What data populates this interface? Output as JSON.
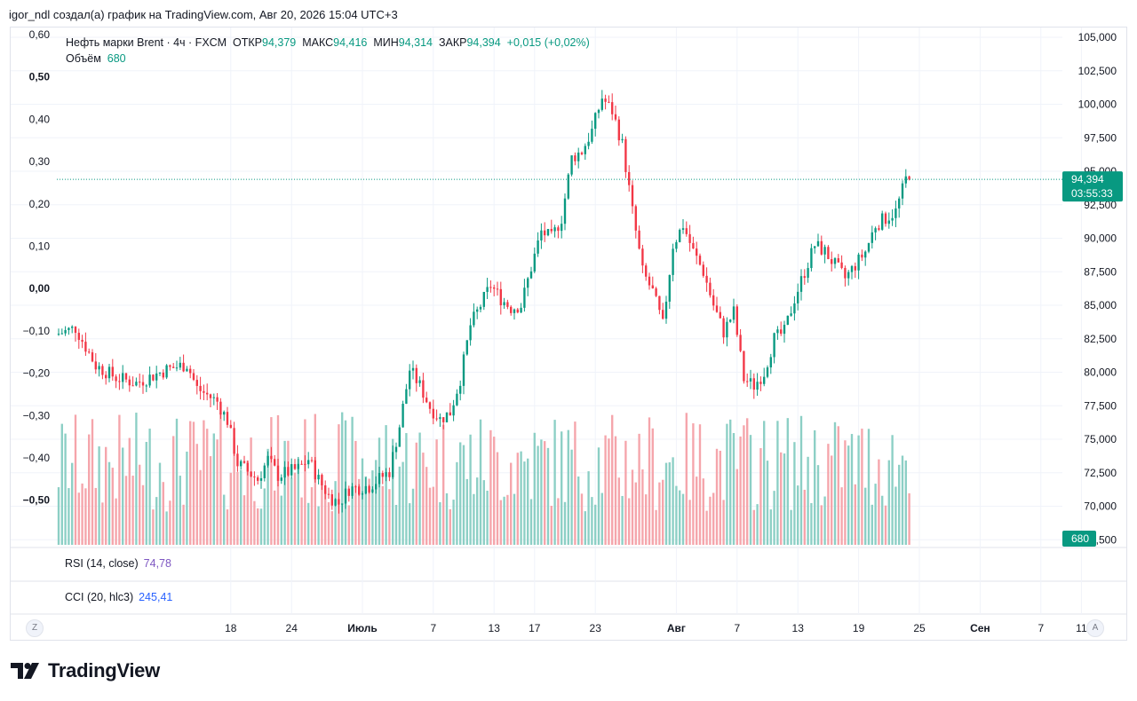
{
  "header": {
    "credit": "igor_ndl создал(а) график на TradingView.com, Авг 20, 2026 15:04 UTC+3"
  },
  "legend": {
    "symbol": "Нефть марки Brent · 4ч · FXCM",
    "open_label": "ОТКР",
    "open": "94,379",
    "high_label": "МАКС",
    "high": "94,416",
    "low_label": "МИН",
    "low": "94,314",
    "close_label": "ЗАКР",
    "close": "94,394",
    "change": "+0,015 (+0,02%)",
    "volume_label": "Объём",
    "volume": "680"
  },
  "indicators": {
    "rsi_label": "RSI (14, close)",
    "rsi_value": "74,78",
    "cci_label": "CCI (20, hlc3)",
    "cci_value": "245,41"
  },
  "price_badge": {
    "price": "94,394",
    "countdown": "03:55:33"
  },
  "volume_badge": "680",
  "buttons": {
    "left": "Z",
    "right": "A"
  },
  "logo": {
    "text": "TradingView",
    "icon": "tradingview-logo-icon"
  },
  "colors": {
    "up": "#089981",
    "down": "#f23645",
    "up_volume": "#8ccfc5",
    "down_volume": "#f5a5ab",
    "price_line": "#089981"
  },
  "chart_data": {
    "type": "candlestick",
    "left_axis": {
      "ticks": [
        "0,60",
        "0,50",
        "0,40",
        "0,30",
        "0,20",
        "0,10",
        "0,00",
        "−0,10",
        "−0,20",
        "−0,30",
        "−0,40",
        "−0,50"
      ],
      "values": [
        0.6,
        0.5,
        0.4,
        0.3,
        0.2,
        0.1,
        0.0,
        -0.1,
        -0.2,
        -0.3,
        -0.4,
        -0.5
      ]
    },
    "right_axis": {
      "ticks": [
        "105,000",
        "102,500",
        "100,000",
        "97,500",
        "95,000",
        "92,500",
        "90,000",
        "87,500",
        "85,000",
        "82,500",
        "80,000",
        "77,500",
        "75,000",
        "72,500",
        "70,000",
        "67,500"
      ],
      "values": [
        105,
        102.5,
        100,
        97.5,
        95,
        92.5,
        90,
        87.5,
        85,
        82.5,
        80,
        77.5,
        75,
        72.5,
        70,
        67.5
      ]
    },
    "x_axis": {
      "labels": [
        "18",
        "24",
        "Июль",
        "7",
        "13",
        "17",
        "23",
        "Авг",
        "7",
        "13",
        "19",
        "25",
        "Сен",
        "7",
        "11"
      ],
      "positions": [
        17,
        23,
        30,
        37,
        43,
        47,
        53,
        61,
        67,
        73,
        79,
        85,
        91,
        97,
        101
      ]
    },
    "current_price": 94.394,
    "anchors": [
      [
        0,
        82.8
      ],
      [
        2,
        83.3
      ],
      [
        4,
        80.5
      ],
      [
        6,
        79.6
      ],
      [
        8,
        79.2
      ],
      [
        11,
        80.2
      ],
      [
        13,
        80.6
      ],
      [
        14,
        78.8
      ],
      [
        16,
        77.8
      ],
      [
        17,
        76.4
      ],
      [
        18,
        73.2
      ],
      [
        20,
        72.0
      ],
      [
        21,
        73.5
      ],
      [
        22,
        72.3
      ],
      [
        24,
        72.8
      ],
      [
        25,
        73.5
      ],
      [
        26,
        72.0
      ],
      [
        27,
        70.8
      ],
      [
        28,
        70.2
      ],
      [
        29,
        71.3
      ],
      [
        31,
        71.5
      ],
      [
        33,
        72.6
      ],
      [
        34,
        76.0
      ],
      [
        35,
        80.2
      ],
      [
        36,
        79.0
      ],
      [
        37,
        77.4
      ],
      [
        38,
        76.5
      ],
      [
        39,
        77.0
      ],
      [
        40,
        79.5
      ],
      [
        41,
        83.5
      ],
      [
        43,
        86.5
      ],
      [
        44,
        85.5
      ],
      [
        45,
        84.8
      ],
      [
        46,
        85.0
      ],
      [
        47,
        87.8
      ],
      [
        48,
        90.5
      ],
      [
        49,
        90.0
      ],
      [
        50,
        91.5
      ],
      [
        51,
        96.0
      ],
      [
        52,
        96.5
      ],
      [
        53,
        98.0
      ],
      [
        54,
        100.5
      ],
      [
        55,
        99.5
      ],
      [
        56,
        97.0
      ],
      [
        57,
        92.0
      ],
      [
        58,
        87.5
      ],
      [
        59,
        86.0
      ],
      [
        60,
        83.5
      ],
      [
        61,
        89.5
      ],
      [
        62,
        91.0
      ],
      [
        63,
        89.0
      ],
      [
        64,
        87.5
      ],
      [
        65,
        85.0
      ],
      [
        66,
        83.0
      ],
      [
        67,
        84.5
      ],
      [
        68,
        79.5
      ],
      [
        69,
        79.0
      ],
      [
        70,
        80.0
      ],
      [
        71,
        82.5
      ],
      [
        72,
        83.0
      ],
      [
        73,
        85.5
      ],
      [
        74,
        87.5
      ],
      [
        75,
        89.5
      ],
      [
        76,
        89.0
      ],
      [
        77,
        88.0
      ],
      [
        78,
        87.0
      ],
      [
        79,
        88.0
      ],
      [
        80,
        89.0
      ],
      [
        81,
        91.0
      ],
      [
        82,
        91.5
      ],
      [
        83,
        92.0
      ],
      [
        84,
        94.4
      ]
    ]
  }
}
